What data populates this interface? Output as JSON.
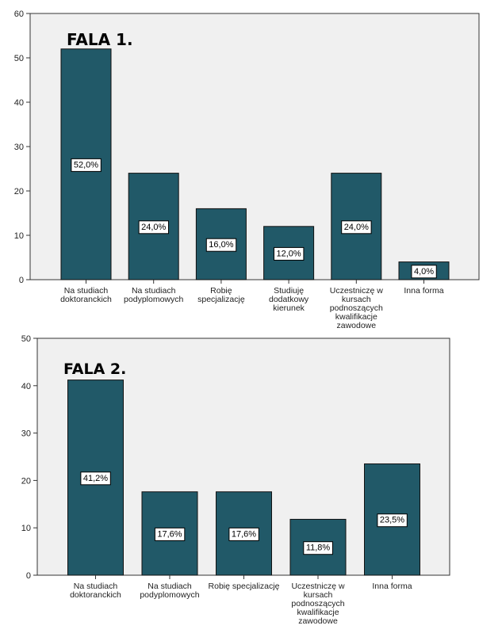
{
  "chart_data": [
    {
      "type": "bar",
      "title": "FALA 1.",
      "xlabel": "",
      "ylabel": "",
      "ylim": [
        0,
        60
      ],
      "yticks": [
        0,
        10,
        20,
        30,
        40,
        50,
        60
      ],
      "grid": false,
      "bar_color": "#215968",
      "plot_background": "#f0f0f0",
      "categories": [
        [
          "Na studiach",
          "doktoranckich"
        ],
        [
          "Na studiach",
          "podyplomowych"
        ],
        [
          "Robię",
          "specjalizację"
        ],
        [
          "Studiuję",
          "dodatkowy",
          "kierunek"
        ],
        [
          "Uczestniczę w",
          "kursach",
          "podnoszących",
          "kwalifikacje",
          "zawodowe"
        ],
        [
          "Inna forma"
        ]
      ],
      "values": [
        52,
        24,
        16,
        12,
        24,
        4
      ],
      "data_labels": [
        "52,0%",
        "24,0%",
        "16,0%",
        "12,0%",
        "24,0%",
        "4,0%"
      ]
    },
    {
      "type": "bar",
      "title": "FALA 2.",
      "xlabel": "",
      "ylabel": "",
      "ylim": [
        0,
        50
      ],
      "yticks": [
        0,
        10,
        20,
        30,
        40,
        50
      ],
      "grid": false,
      "bar_color": "#215968",
      "plot_background": "#f0f0f0",
      "categories": [
        [
          "Na studiach",
          "doktoranckich"
        ],
        [
          "Na studiach",
          "podyplomowych"
        ],
        [
          "Robię specjalizację"
        ],
        [
          "Uczestniczę w",
          "kursach",
          "podnoszących",
          "kwalifikacje",
          "zawodowe"
        ],
        [
          "Inna forma"
        ]
      ],
      "values": [
        41.2,
        17.6,
        17.6,
        11.8,
        23.5
      ],
      "data_labels": [
        "41,2%",
        "17,6%",
        "17,6%",
        "11,8%",
        "23,5%"
      ]
    }
  ]
}
